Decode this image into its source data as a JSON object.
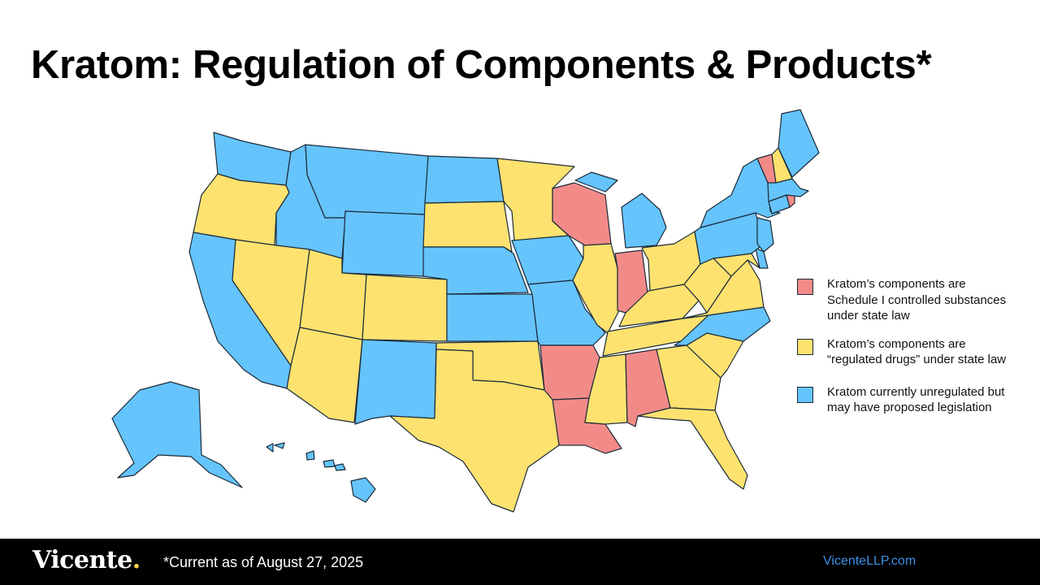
{
  "title": "Kratom: Regulation of Components & Products*",
  "colors": {
    "schedule1": "#f28b88",
    "regulated": "#fde26f",
    "unregulated": "#65c4fb",
    "outline": "#1b2a3a"
  },
  "legend": [
    {
      "key": "schedule1",
      "color": "#f28b88",
      "label": "Kratom’s components are Schedule I controlled substances under state law"
    },
    {
      "key": "regulated",
      "color": "#fde26f",
      "label": "Kratom’s components are “regulated drugs” under state law"
    },
    {
      "key": "unregulated",
      "color": "#65c4fb",
      "label": "Kratom currently unregulated but may have proposed legislation"
    }
  ],
  "states": {
    "WA": "unregulated",
    "OR": "regulated",
    "CA": "unregulated",
    "ID": "unregulated",
    "NV": "regulated",
    "MT": "unregulated",
    "WY": "unregulated",
    "UT": "regulated",
    "AZ": "regulated",
    "CO": "regulated",
    "NM": "unregulated",
    "ND": "unregulated",
    "SD": "regulated",
    "NE": "unregulated",
    "KS": "unregulated",
    "OK": "regulated",
    "TX": "regulated",
    "MN": "regulated",
    "IA": "unregulated",
    "MO": "unregulated",
    "AR": "schedule1",
    "LA": "schedule1",
    "WI": "schedule1",
    "IL": "regulated",
    "MI": "unregulated",
    "IN": "schedule1",
    "OH": "regulated",
    "KY": "regulated",
    "TN": "regulated",
    "MS": "regulated",
    "AL": "schedule1",
    "GA": "regulated",
    "FL": "regulated",
    "SC": "regulated",
    "NC": "unregulated",
    "VA": "regulated",
    "WV": "regulated",
    "MD": "regulated",
    "DE": "unregulated",
    "PA": "unregulated",
    "NJ": "unregulated",
    "NY": "unregulated",
    "CT": "unregulated",
    "RI": "schedule1",
    "MA": "unregulated",
    "VT": "schedule1",
    "NH": "regulated",
    "ME": "unregulated",
    "AK": "unregulated",
    "HI": "unregulated"
  },
  "footer": {
    "logo_text": "Vicente",
    "logo_dot": ".",
    "note": "*Current as of August 27, 2025",
    "website": "VicenteLLP.com"
  }
}
